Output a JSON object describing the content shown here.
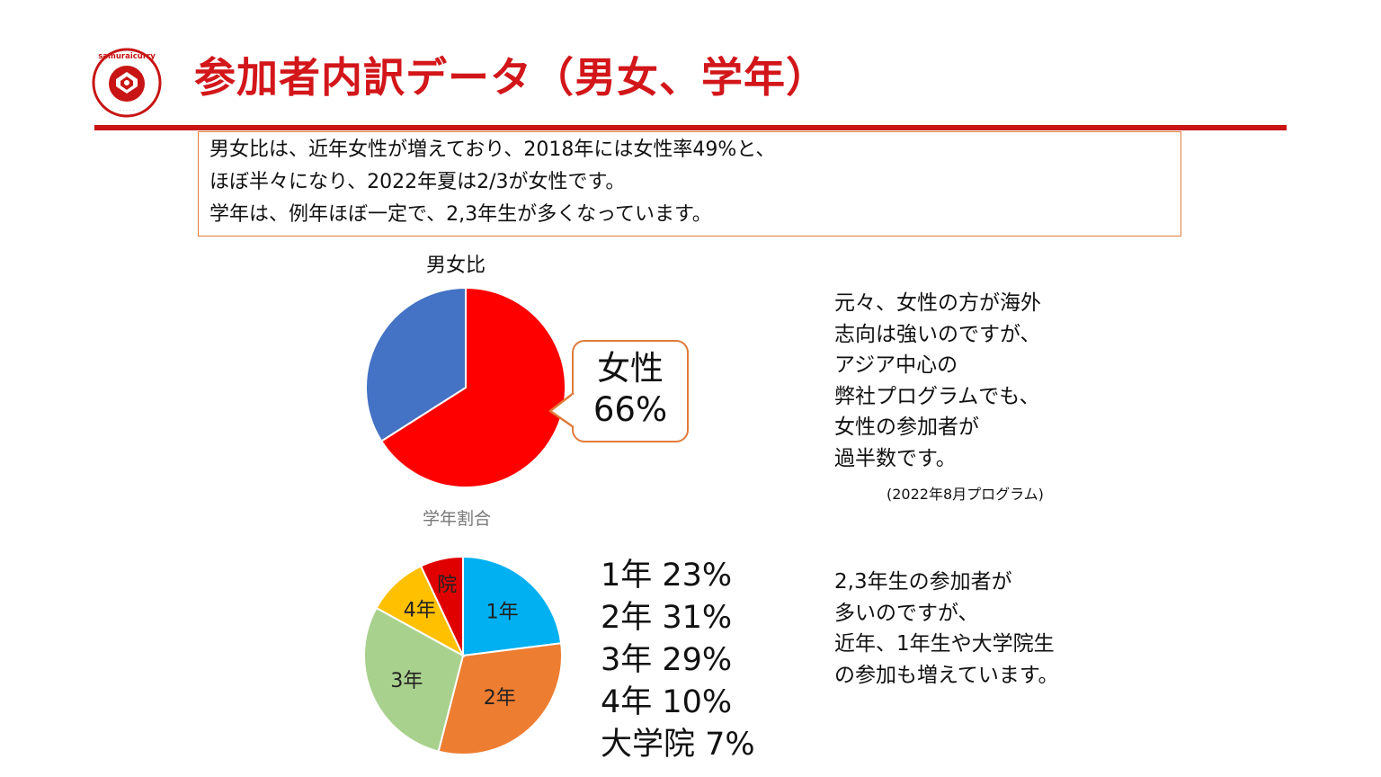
{
  "header": {
    "logo_text": "samuraicurry",
    "title": "参加者内訳データ（男女、学年）"
  },
  "colors": {
    "title_red": "#d2161a",
    "box_border": "#e07a3a"
  },
  "summary": {
    "lines": [
      "男女比は、近年女性が増えており、2018年には女性率49%と、",
      "ほぼ半々になり、2022年夏は2/3が女性です。",
      "学年は、例年ほぼ一定で、2,3年生が多くなっています。"
    ]
  },
  "chart_data": [
    {
      "type": "pie",
      "title": "男女比",
      "start": "12 o'clock, clockwise",
      "slices": [
        {
          "label": "女性",
          "value": 66,
          "color": "#ff0000"
        },
        {
          "label": "",
          "value": 34,
          "color": "#4472c4"
        }
      ],
      "callout": {
        "label": "女性",
        "value": "66%"
      }
    },
    {
      "type": "pie",
      "title": "学年割合",
      "start": "12 o'clock, clockwise",
      "slices": [
        {
          "label": "1年",
          "value": 23,
          "color": "#00b0f0"
        },
        {
          "label": "2年",
          "value": 31,
          "color": "#ed7d31"
        },
        {
          "label": "3年",
          "value": 29,
          "color": "#a9d18e"
        },
        {
          "label": "4年",
          "value": 10,
          "color": "#ffc000"
        },
        {
          "label": "院",
          "value": 7,
          "color": "#e00000"
        }
      ]
    }
  ],
  "grade_legend": [
    "1年 23%",
    "2年 31%",
    "3年 29%",
    "4年 10%",
    "大学院 7%"
  ],
  "notes": {
    "gender": {
      "lines": [
        "元々、女性の方が海外",
        "志向は強いのですが、",
        "アジア中心の",
        "弊社プログラムでも、",
        "女性の参加者が",
        "過半数です。"
      ],
      "source": "(2022年8月プログラム)"
    },
    "grade": {
      "lines": [
        "2,3年生の参加者が",
        "多いのですが、",
        "近年、1年生や大学院生",
        "の参加も増えています。"
      ]
    }
  }
}
